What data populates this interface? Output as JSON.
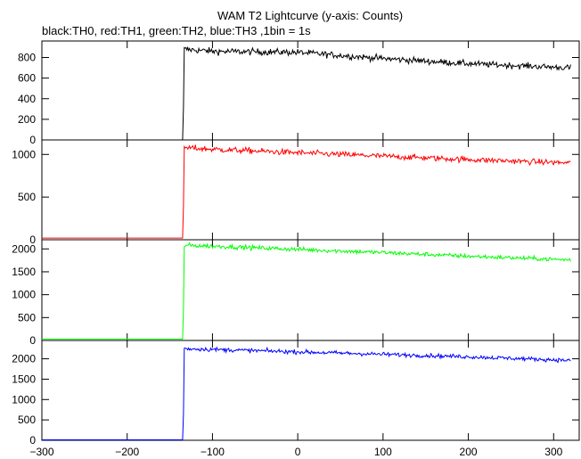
{
  "chart_data": {
    "type": "line",
    "title": "WAM T2 Lightcurve (y-axis: Counts)",
    "subtitle": "black:TH0, red:TH1, green:TH2, blue:TH3 ,1bin = 1s",
    "xlim": [
      -300,
      330
    ],
    "x_ticks": [
      -300,
      -200,
      -100,
      0,
      100,
      200,
      300
    ],
    "x_tick_labels": [
      "−300",
      "−200",
      "−100",
      "0",
      "100",
      "200",
      "300"
    ],
    "grid": false,
    "panels": [
      {
        "series": "TH0",
        "color": "#000000",
        "ylim": [
          0,
          960
        ],
        "y_ticks": [
          0,
          200,
          400,
          600,
          800
        ],
        "y_tick_labels": [
          "0",
          "200",
          "400",
          "600",
          "800"
        ],
        "x_range": [
          -300,
          320
        ],
        "points": [
          [
            -300,
            0
          ],
          [
            -135,
            0
          ],
          [
            -134,
            320
          ],
          [
            -133,
            880
          ],
          [
            -100,
            860
          ],
          [
            0,
            850
          ],
          [
            100,
            790
          ],
          [
            200,
            740
          ],
          [
            320,
            700
          ]
        ]
      },
      {
        "series": "TH1",
        "color": "#ff0000",
        "ylim": [
          0,
          1170
        ],
        "y_ticks": [
          0,
          500,
          1000
        ],
        "y_tick_labels": [
          "0",
          "500",
          "1000"
        ],
        "x_range": [
          -300,
          320
        ],
        "points": [
          [
            -300,
            20
          ],
          [
            -135,
            20
          ],
          [
            -134,
            400
          ],
          [
            -133,
            1080
          ],
          [
            -100,
            1060
          ],
          [
            0,
            1020
          ],
          [
            100,
            980
          ],
          [
            200,
            940
          ],
          [
            320,
            900
          ]
        ]
      },
      {
        "series": "TH2",
        "color": "#00ff00",
        "ylim": [
          0,
          2200
        ],
        "y_ticks": [
          0,
          500,
          1000,
          1500,
          2000
        ],
        "y_tick_labels": [
          "0",
          "500",
          "1000",
          "1500",
          "2000"
        ],
        "x_range": [
          -300,
          320
        ],
        "points": [
          [
            -300,
            30
          ],
          [
            -135,
            30
          ],
          [
            -134,
            700
          ],
          [
            -133,
            2080
          ],
          [
            -100,
            2060
          ],
          [
            0,
            1990
          ],
          [
            100,
            1920
          ],
          [
            200,
            1840
          ],
          [
            320,
            1760
          ]
        ]
      },
      {
        "series": "TH3",
        "color": "#0000ff",
        "ylim": [
          0,
          2450
        ],
        "y_ticks": [
          0,
          500,
          1000,
          1500,
          2000
        ],
        "y_tick_labels": [
          "0",
          "500",
          "1000",
          "1500",
          "2000"
        ],
        "x_range": [
          -300,
          320
        ],
        "points": [
          [
            -300,
            10
          ],
          [
            -135,
            10
          ],
          [
            -134,
            650
          ],
          [
            -133,
            2250
          ],
          [
            -100,
            2230
          ],
          [
            0,
            2170
          ],
          [
            100,
            2110
          ],
          [
            200,
            2050
          ],
          [
            320,
            1960
          ]
        ]
      }
    ]
  }
}
